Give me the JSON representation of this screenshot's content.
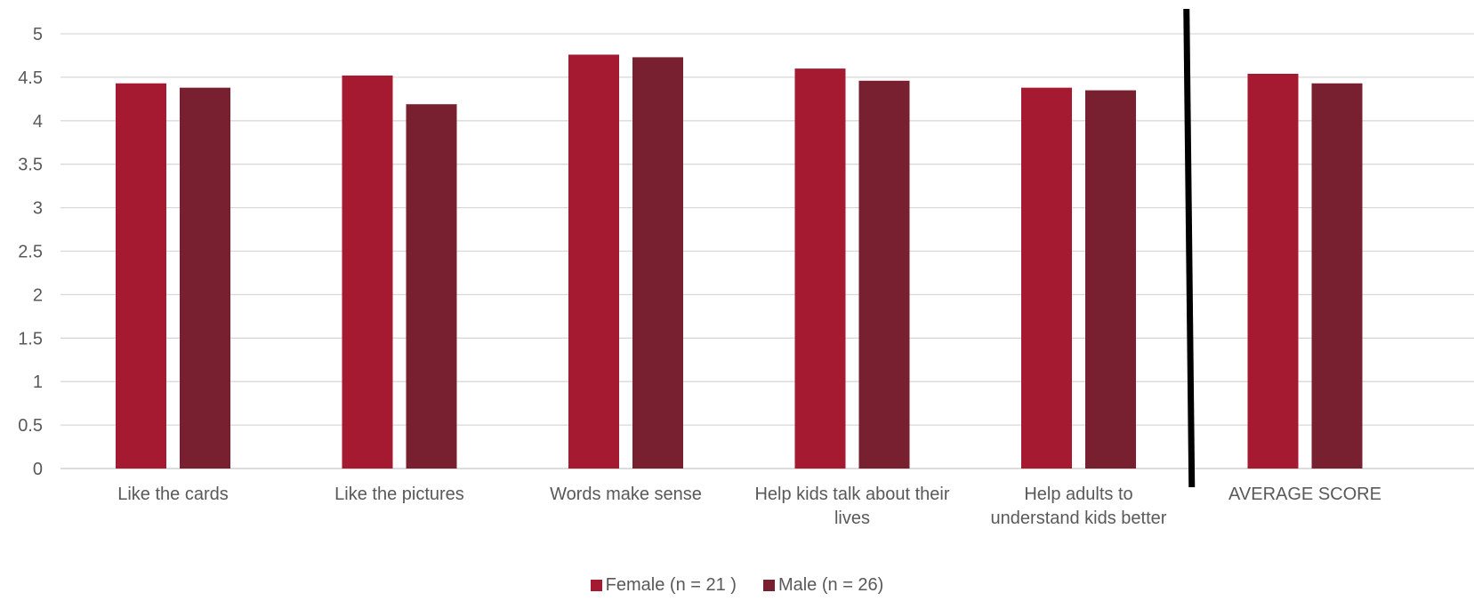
{
  "chart_data": {
    "type": "bar",
    "categories": [
      [
        "Like the cards"
      ],
      [
        "Like the pictures"
      ],
      [
        "Words make sense"
      ],
      [
        "Help kids talk about their",
        "lives"
      ],
      [
        "Help adults to",
        "understand kids better"
      ],
      [
        "AVERAGE SCORE"
      ]
    ],
    "series": [
      {
        "name": "Female (n = 21 )",
        "color": "#A51931",
        "values": [
          4.43,
          4.52,
          4.76,
          4.6,
          4.38,
          4.54
        ]
      },
      {
        "name": "Male (n = 26)",
        "color": "#78202F",
        "values": [
          4.38,
          4.19,
          4.73,
          4.46,
          4.35,
          4.43
        ]
      }
    ],
    "yticks": [
      "0",
      "0.5",
      "1",
      "1.5",
      "2",
      "2.5",
      "3",
      "3.5",
      "4",
      "4.5",
      "5"
    ],
    "ylim": [
      0,
      5
    ],
    "grid": true,
    "legend_position": "bottom",
    "separator_before_category": 5
  }
}
